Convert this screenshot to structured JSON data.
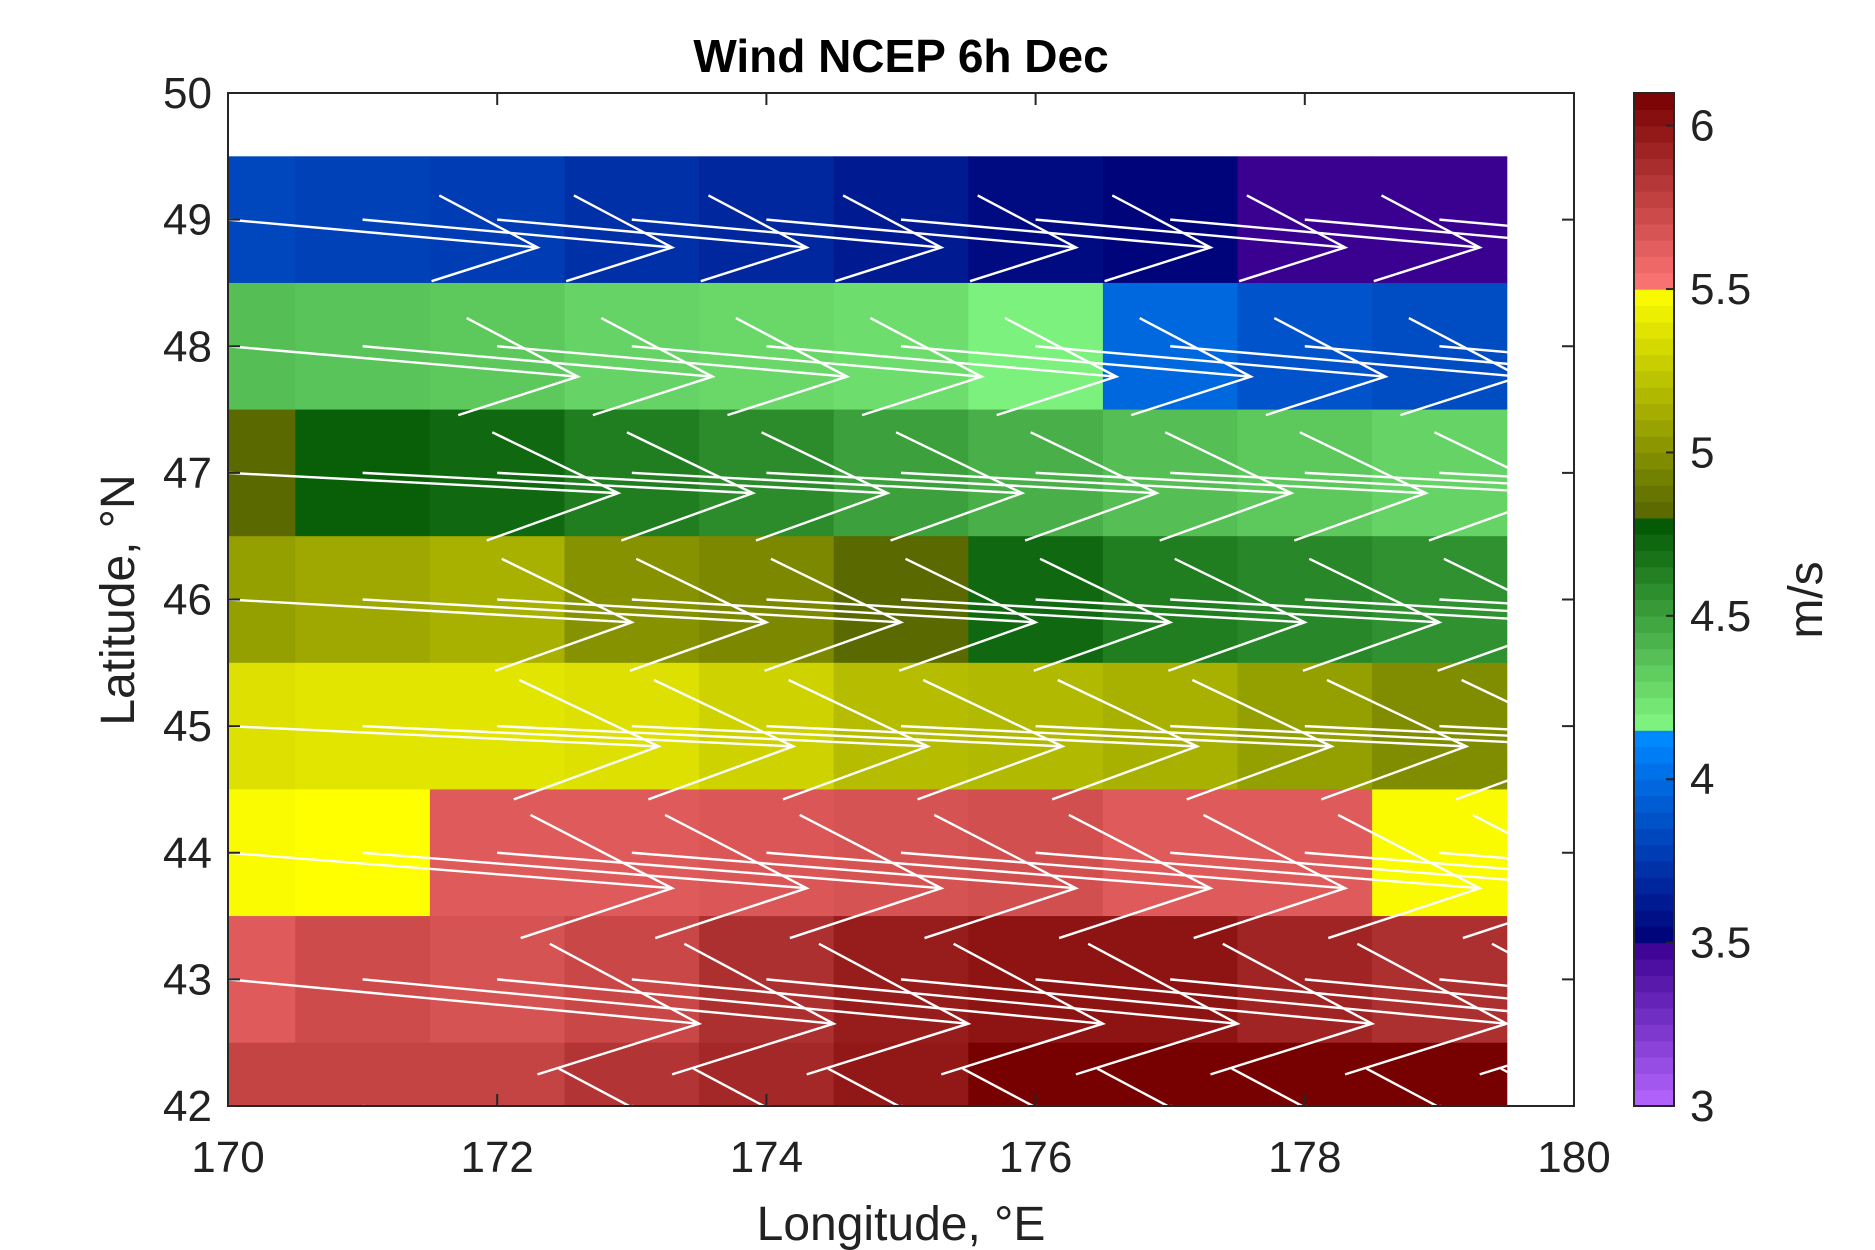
{
  "chart_data": {
    "type": "heatmap",
    "title": "Wind NCEP 6h Dec",
    "xlabel": "Longitude, °E",
    "ylabel": "Latitude, °N",
    "xlim": [
      170,
      180
    ],
    "ylim": [
      42,
      50
    ],
    "x_ticks": [
      "170",
      "172",
      "174",
      "176",
      "178",
      "180"
    ],
    "y_ticks": [
      "42",
      "43",
      "44",
      "45",
      "46",
      "47",
      "48",
      "49",
      "50"
    ],
    "x_centers": [
      170,
      171,
      172,
      173,
      174,
      175,
      176,
      177,
      178,
      179
    ],
    "y_centers": [
      49,
      48,
      47,
      46,
      45,
      44,
      43,
      42
    ],
    "values": [
      [
        3.82,
        3.8,
        3.78,
        3.72,
        3.68,
        3.62,
        3.55,
        3.52,
        3.5,
        3.5
      ],
      [
        4.38,
        4.36,
        4.34,
        4.3,
        4.28,
        4.26,
        4.18,
        3.98,
        3.88,
        3.85
      ],
      [
        4.82,
        4.76,
        4.72,
        4.64,
        4.58,
        4.5,
        4.44,
        4.38,
        4.34,
        4.3
      ],
      [
        5.06,
        5.1,
        5.14,
        5.0,
        4.96,
        4.82,
        4.72,
        4.64,
        4.6,
        4.56
      ],
      [
        5.36,
        5.38,
        5.38,
        5.36,
        5.3,
        5.2,
        5.18,
        5.14,
        5.06,
        4.98
      ],
      [
        5.48,
        5.5,
        5.64,
        5.64,
        5.66,
        5.68,
        5.7,
        5.64,
        5.64,
        5.48
      ],
      [
        5.64,
        5.72,
        5.68,
        5.74,
        5.86,
        5.96,
        6.0,
        6.0,
        5.92,
        5.86
      ],
      [
        5.76,
        5.76,
        5.76,
        5.84,
        5.9,
        5.98,
        6.1,
        6.1,
        6.1,
        6.1
      ]
    ],
    "arrow_lengths_deg": [
      [
        2.3,
        2.3,
        2.3,
        2.3,
        2.3,
        2.3,
        2.3,
        2.3,
        2.3,
        2.3
      ],
      [
        2.6,
        2.6,
        2.6,
        2.6,
        2.6,
        2.6,
        2.6,
        2.6,
        2.6,
        2.6
      ],
      [
        2.9,
        2.9,
        2.9,
        2.9,
        2.9,
        2.9,
        2.9,
        2.9,
        2.9,
        2.9
      ],
      [
        3.0,
        3.0,
        3.0,
        3.0,
        3.0,
        3.0,
        3.0,
        3.0,
        3.0,
        3.0
      ],
      [
        3.2,
        3.2,
        3.2,
        3.2,
        3.2,
        3.2,
        3.2,
        3.2,
        3.2,
        3.2
      ],
      [
        3.3,
        3.3,
        3.3,
        3.3,
        3.3,
        3.3,
        3.3,
        3.3,
        3.3,
        3.3
      ],
      [
        3.5,
        3.5,
        3.5,
        3.5,
        3.5,
        3.5,
        3.5,
        3.5,
        3.5,
        3.5
      ],
      [
        3.6,
        3.6,
        3.6,
        3.6,
        3.6,
        3.6,
        3.6,
        3.6,
        3.6,
        3.6
      ]
    ],
    "arrow_lat_drop_deg": [
      0.22,
      0.24,
      0.16,
      0.18,
      0.16,
      0.28,
      0.35,
      0.35
    ],
    "colorbar": {
      "label": "m/s",
      "range": [
        3,
        6.1
      ],
      "ticks": [
        "3",
        "3.5",
        "4",
        "4.5",
        "5",
        "5.5",
        "6"
      ],
      "segments": [
        {
          "from": 3.0,
          "to": 3.5,
          "start": "#b566ff",
          "end": "#3a0090"
        },
        {
          "from": 3.5,
          "to": 4.125,
          "start": "#000077",
          "end": "#0088ff"
        },
        {
          "from": 4.125,
          "to": 4.8,
          "start": "#88ff88",
          "end": "#005500"
        },
        {
          "from": 4.8,
          "to": 5.5,
          "start": "#556600",
          "end": "#ffff00"
        },
        {
          "from": 5.5,
          "to": 6.1,
          "start": "#ff7777",
          "end": "#770000"
        }
      ]
    },
    "grid": false
  }
}
